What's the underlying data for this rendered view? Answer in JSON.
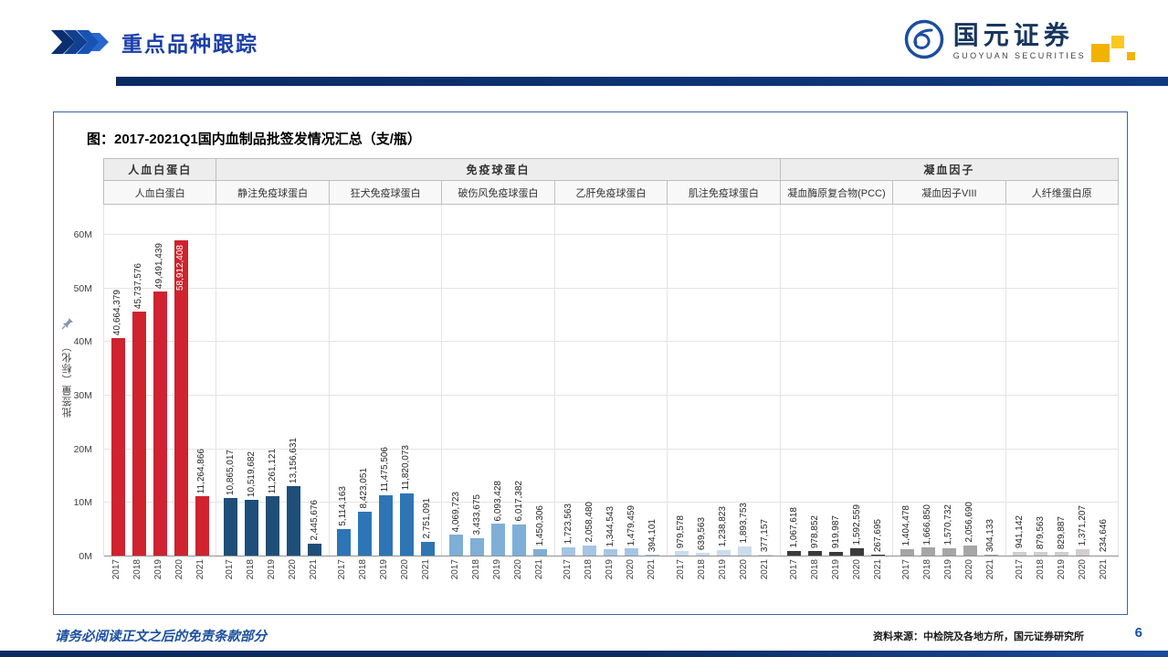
{
  "header": {
    "title": "重点品种跟踪",
    "logo": {
      "name": "国元证券",
      "subtitle": "GUOYUAN SECURITIES"
    }
  },
  "footer": {
    "disclaimer": "请务必阅读正文之后的免责条款部分",
    "source": "资料来源：中检院及各地方所，国元证券研究所",
    "page_number": "6"
  },
  "chart_data": {
    "type": "bar",
    "title": "图：2017-2021Q1国内血制品批签发情况汇总（支/瓶）",
    "ylabel": "批签量（标化）",
    "ylim": [
      0,
      60000000
    ],
    "ytick_labels": [
      "0M",
      "10M",
      "20M",
      "30M",
      "40M",
      "50M",
      "60M"
    ],
    "categories": [
      "2017",
      "2018",
      "2019",
      "2020",
      "2021"
    ],
    "grid": true,
    "legend": "none",
    "group_headers": [
      {
        "label": "人血白蛋白",
        "span": 1
      },
      {
        "label": "免疫球蛋白",
        "span": 5
      },
      {
        "label": "凝血因子",
        "span": 3
      }
    ],
    "series": [
      {
        "name": "人血白蛋白",
        "color": "#d0222f",
        "values": [
          40664379,
          45737576,
          49491439,
          58912408,
          11264866
        ]
      },
      {
        "name": "静注免疫球蛋白",
        "color": "#1f4e79",
        "values": [
          10865017,
          10519682,
          11261121,
          13156631,
          2445676
        ]
      },
      {
        "name": "狂犬免疫球蛋白",
        "color": "#2e75b6",
        "values": [
          5114163,
          8423051,
          11475506,
          11820073,
          2751091
        ]
      },
      {
        "name": "破伤风免疫球蛋白",
        "color": "#7fafd6",
        "values": [
          4069723,
          3433675,
          6093428,
          6017382,
          1450306
        ]
      },
      {
        "name": "乙肝免疫球蛋白",
        "color": "#a6c5e3",
        "values": [
          1723563,
          2058480,
          1344543,
          1479459,
          394101
        ]
      },
      {
        "name": "肌注免疫球蛋白",
        "color": "#cadcee",
        "values": [
          979578,
          639563,
          1238823,
          1893753,
          377157
        ]
      },
      {
        "name": "凝血酶原复合物(PCC)",
        "color": "#3a3a3a",
        "values": [
          1067618,
          978852,
          919987,
          1592559,
          267695
        ]
      },
      {
        "name": "凝血因子VIII",
        "color": "#a6a6a6",
        "values": [
          1404478,
          1666850,
          1570732,
          2056690,
          304133
        ]
      },
      {
        "name": "人纤维蛋白原",
        "color": "#d0cece",
        "values": [
          941142,
          879563,
          829887,
          1371207,
          234646
        ]
      }
    ]
  }
}
